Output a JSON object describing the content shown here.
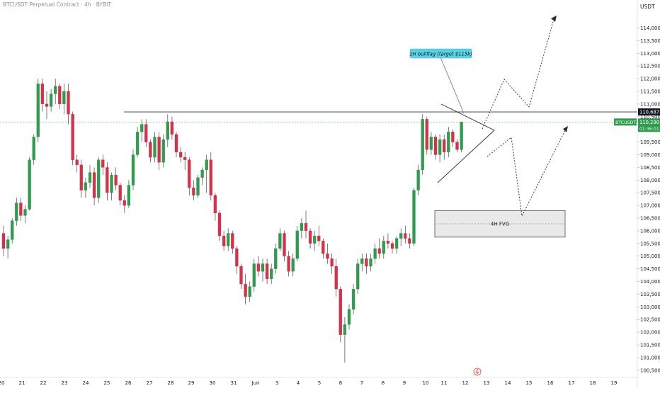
{
  "header": {
    "title": "BTCUSDT Perpetual Contract · 4h · BYBIT",
    "currency": "USDT"
  },
  "price_labels": {
    "resistance": "110,687.9",
    "ticker": "BTCUSDT.P",
    "last": "110,290.2",
    "countdown": "01:36:01"
  },
  "annotations": {
    "callout": "1H bullflag (target $115k)",
    "fvg": "4H FVG"
  },
  "colors": {
    "up": "#26a69a",
    "down": "#ef5350",
    "upCandle": "#2e9b4f",
    "downCandle": "#d6304a",
    "callout": "#5bd3e6",
    "lastPrice": "#2e9b4f"
  },
  "chart_data": {
    "type": "candlestick",
    "xlabel": "",
    "ylabel": "",
    "ylim": [
      100300,
      114600
    ],
    "y_ticks": [
      "100,500.0",
      "101,000.0",
      "101,500.0",
      "102,000.0",
      "102,500.0",
      "103,000.0",
      "103,500.0",
      "104,000.0",
      "104,500.0",
      "105,000.0",
      "105,500.0",
      "106,000.0",
      "106,500.0",
      "107,000.0",
      "107,500.0",
      "108,000.0",
      "108,500.0",
      "109,000.0",
      "109,500.0",
      "110,000.0",
      "110,500.0",
      "111,000.0",
      "111,500.0",
      "112,000.0",
      "112,500.0",
      "113,000.0",
      "113,500.0",
      "114,000.0"
    ],
    "x_ticks": [
      "20",
      "21",
      "22",
      "23",
      "24",
      "25",
      "26",
      "27",
      "28",
      "29",
      "30",
      "31",
      "Jun",
      "3",
      "4",
      "5",
      "6",
      "7",
      "8",
      "9",
      "10",
      "11",
      "12",
      "13",
      "14",
      "15",
      "16",
      "17",
      "18",
      "19"
    ],
    "resistance_level": 110687.9,
    "last_price": 110290.2,
    "fvg_zone": [
      105750,
      106800
    ],
    "candles": [
      [
        105900,
        106200,
        105000,
        105300
      ],
      [
        105300,
        105800,
        104900,
        105650
      ],
      [
        105650,
        106500,
        105500,
        106400
      ],
      [
        106400,
        107300,
        106200,
        107100
      ],
      [
        107100,
        107300,
        106400,
        106600
      ],
      [
        106600,
        107000,
        106300,
        106850
      ],
      [
        106850,
        108900,
        106800,
        108800
      ],
      [
        108800,
        109800,
        108600,
        109700
      ],
      [
        109700,
        112000,
        109500,
        111800
      ],
      [
        111800,
        112000,
        110700,
        111000
      ],
      [
        111000,
        111500,
        110400,
        110900
      ],
      [
        110900,
        111600,
        110700,
        111400
      ],
      [
        111400,
        112000,
        111000,
        111700
      ],
      [
        111700,
        111800,
        110800,
        111000
      ],
      [
        111000,
        111800,
        110600,
        111500
      ],
      [
        111500,
        111800,
        110200,
        110600
      ],
      [
        110600,
        110700,
        108600,
        108800
      ],
      [
        108800,
        109000,
        108300,
        108600
      ],
      [
        108600,
        108800,
        107300,
        107600
      ],
      [
        107600,
        108100,
        107300,
        107900
      ],
      [
        107900,
        108600,
        107700,
        108300
      ],
      [
        108300,
        108500,
        107000,
        107300
      ],
      [
        107300,
        108900,
        107100,
        108800
      ],
      [
        108800,
        109000,
        108200,
        108500
      ],
      [
        108500,
        108700,
        107200,
        107500
      ],
      [
        107500,
        108300,
        107200,
        108200
      ],
      [
        108200,
        108500,
        107600,
        107800
      ],
      [
        107800,
        107900,
        107000,
        107200
      ],
      [
        107200,
        107400,
        106700,
        107000
      ],
      [
        107000,
        108000,
        106900,
        107800
      ],
      [
        107800,
        109200,
        107600,
        109000
      ],
      [
        109000,
        110100,
        108900,
        109900
      ],
      [
        109900,
        110400,
        109500,
        110200
      ],
      [
        110200,
        110400,
        109300,
        109500
      ],
      [
        109500,
        109600,
        108700,
        108900
      ],
      [
        108900,
        109900,
        108700,
        109700
      ],
      [
        109700,
        109900,
        108400,
        108700
      ],
      [
        108700,
        109800,
        108500,
        109600
      ],
      [
        109600,
        110600,
        109300,
        110300
      ],
      [
        110300,
        110500,
        109600,
        109800
      ],
      [
        109800,
        109900,
        108900,
        109100
      ],
      [
        109100,
        109300,
        108700,
        108900
      ],
      [
        108900,
        109100,
        108400,
        108800
      ],
      [
        108800,
        108900,
        107400,
        107700
      ],
      [
        107700,
        108000,
        107200,
        107400
      ],
      [
        107400,
        108200,
        107300,
        108100
      ],
      [
        108100,
        108500,
        107800,
        108400
      ],
      [
        108400,
        109000,
        107500,
        108800
      ],
      [
        108800,
        109100,
        107200,
        107400
      ],
      [
        107400,
        107500,
        106400,
        106700
      ],
      [
        106700,
        106800,
        105600,
        105800
      ],
      [
        105800,
        106000,
        105200,
        105400
      ],
      [
        105400,
        106100,
        105200,
        105900
      ],
      [
        105900,
        106000,
        105100,
        105300
      ],
      [
        105300,
        105400,
        104300,
        104600
      ],
      [
        104600,
        104700,
        103700,
        103900
      ],
      [
        103900,
        104300,
        103100,
        103400
      ],
      [
        103400,
        104000,
        103200,
        103800
      ],
      [
        103800,
        104900,
        103600,
        104700
      ],
      [
        104700,
        105000,
        104200,
        104400
      ],
      [
        104400,
        104900,
        104000,
        104700
      ],
      [
        104700,
        104900,
        103900,
        104100
      ],
      [
        104100,
        104700,
        103900,
        104500
      ],
      [
        104500,
        105500,
        104300,
        105300
      ],
      [
        105300,
        106100,
        105200,
        105900
      ],
      [
        105900,
        106000,
        104800,
        105000
      ],
      [
        105000,
        105200,
        104200,
        104400
      ],
      [
        104400,
        105100,
        104200,
        104900
      ],
      [
        104900,
        106200,
        104800,
        106000
      ],
      [
        106000,
        106500,
        105700,
        106300
      ],
      [
        106300,
        106800,
        105700,
        106000
      ],
      [
        106000,
        106100,
        105300,
        105500
      ],
      [
        105500,
        106000,
        105200,
        105800
      ],
      [
        105800,
        106200,
        105400,
        105600
      ],
      [
        105600,
        105700,
        104900,
        105100
      ],
      [
        105100,
        105500,
        104700,
        104900
      ],
      [
        104900,
        105100,
        104300,
        104600
      ],
      [
        104600,
        104900,
        103400,
        103700
      ],
      [
        103700,
        103800,
        101600,
        101900
      ],
      [
        101900,
        102600,
        100800,
        102300
      ],
      [
        102300,
        103100,
        102100,
        102900
      ],
      [
        102900,
        103900,
        102700,
        103700
      ],
      [
        103700,
        104900,
        103500,
        104700
      ],
      [
        104700,
        105100,
        104400,
        104900
      ],
      [
        104900,
        105100,
        104300,
        104600
      ],
      [
        104600,
        105100,
        104400,
        104900
      ],
      [
        104900,
        105500,
        104700,
        105300
      ],
      [
        105300,
        105700,
        104900,
        105100
      ],
      [
        105100,
        105800,
        104900,
        105600
      ],
      [
        105600,
        105900,
        105300,
        105500
      ],
      [
        105500,
        105600,
        105100,
        105300
      ],
      [
        105300,
        105800,
        105100,
        105700
      ],
      [
        105700,
        106100,
        105400,
        105900
      ],
      [
        105900,
        106200,
        105500,
        105700
      ],
      [
        105700,
        105900,
        105300,
        105500
      ],
      [
        105500,
        107700,
        105400,
        107600
      ],
      [
        107600,
        108600,
        107400,
        108400
      ],
      [
        108400,
        110600,
        108200,
        110400
      ],
      [
        110400,
        110500,
        109000,
        109200
      ],
      [
        109200,
        109900,
        109000,
        109700
      ],
      [
        109700,
        109800,
        108800,
        109000
      ],
      [
        109000,
        109800,
        108700,
        109600
      ],
      [
        109600,
        109800,
        108800,
        109100
      ],
      [
        109100,
        110100,
        108900,
        109900
      ],
      [
        109900,
        110000,
        109300,
        109500
      ],
      [
        109500,
        109600,
        109100,
        109200
      ],
      [
        109200,
        110300,
        109100,
        110290
      ]
    ]
  }
}
